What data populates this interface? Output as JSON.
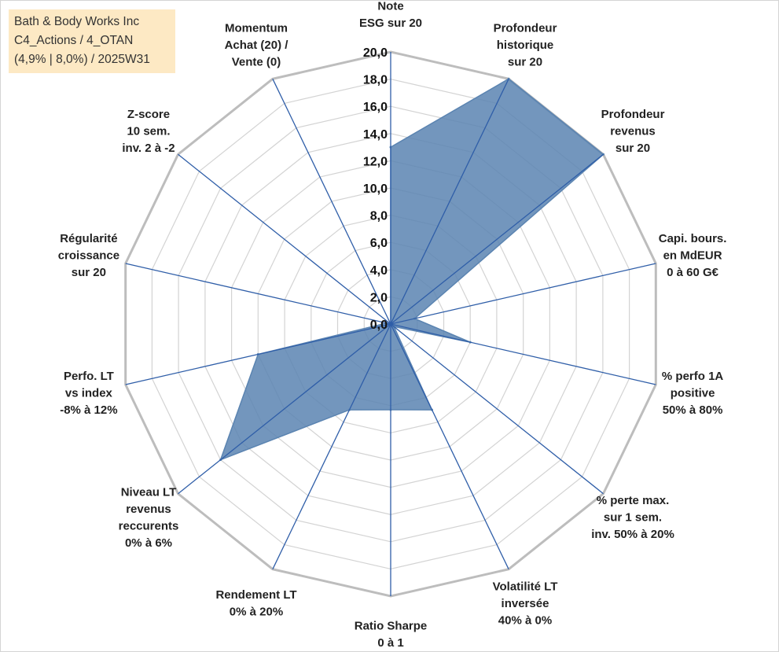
{
  "title_box": {
    "lines": [
      "Bath & Body Works Inc",
      "C4_Actions / 4_OTAN",
      "(4,9% | 8,0%) / 2025W31"
    ]
  },
  "chart_data": {
    "type": "radar",
    "title": "",
    "axes": [
      {
        "label_lines": [
          "Note",
          "ESG sur 20"
        ],
        "value": 13.0
      },
      {
        "label_lines": [
          "Profondeur",
          "historique",
          "sur 20"
        ],
        "value": 20.0
      },
      {
        "label_lines": [
          "Profondeur",
          "revenus",
          "sur 20"
        ],
        "value": 20.0
      },
      {
        "label_lines": [
          "Capi. bours.",
          "en MdEUR",
          "0 à 60 G€"
        ],
        "value": 1.8
      },
      {
        "label_lines": [
          "% perfo 1A",
          "positive",
          "50% à 80%"
        ],
        "value": 6.0
      },
      {
        "label_lines": [
          "% perte max.",
          "sur 1 sem.",
          "inv. 50% à 20%"
        ],
        "value": 0.3
      },
      {
        "label_lines": [
          "Volatilité LT",
          "inversée",
          "40% à 0%"
        ],
        "value": 7.0
      },
      {
        "label_lines": [
          "Ratio Sharpe",
          "0 à 1"
        ],
        "value": 6.3
      },
      {
        "label_lines": [
          "Rendement LT",
          "0% à 20%"
        ],
        "value": 7.0
      },
      {
        "label_lines": [
          "Niveau LT",
          "revenus",
          "reccurents",
          "0% à 6%"
        ],
        "value": 16.0
      },
      {
        "label_lines": [
          "Perfo. LT",
          "vs index",
          "-8% à 12%"
        ],
        "value": 10.0
      },
      {
        "label_lines": [
          "Régularité",
          "croissance",
          "sur 20"
        ],
        "value": 0.3
      },
      {
        "label_lines": [
          "Z-score",
          "10 sem.",
          "inv. 2 à -2"
        ],
        "value": 0.0
      },
      {
        "label_lines": [
          "Momentum",
          "Achat (20) /",
          "Vente (0)"
        ],
        "value": 0.0
      }
    ],
    "rlim": [
      0,
      20
    ],
    "ticks": [
      "0,0",
      "2,0",
      "4,0",
      "6,0",
      "8,0",
      "10,0",
      "12,0",
      "14,0",
      "16,0",
      "18,0",
      "20,0"
    ],
    "grid": true,
    "colors": {
      "fill": "#5b84b1",
      "axis": "#2f5ea8",
      "grid": "#c8c8c8",
      "title_bg": "#fde9c4"
    }
  }
}
